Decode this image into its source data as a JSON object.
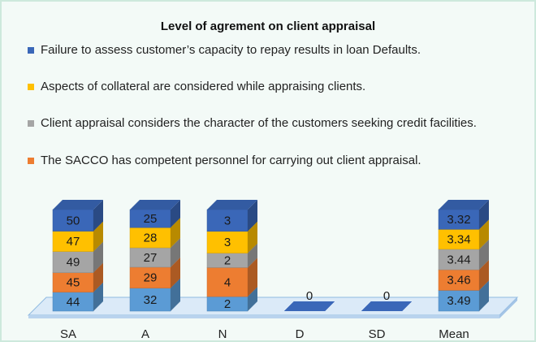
{
  "chart_data": {
    "type": "bar",
    "stacked": "percent",
    "title": "Level of agrement on client appraisal",
    "categories": [
      "SA",
      "A",
      "N",
      "D",
      "SD",
      "Mean"
    ],
    "series": [
      {
        "name": "Failure to assess customer’s capacity to repay results in loan Defaults.",
        "color": "#3a67b8",
        "values": [
          50,
          25,
          3,
          0,
          0,
          3.32
        ]
      },
      {
        "name": "Aspects of collateral are considered while appraising clients.",
        "color": "#ffc000",
        "values": [
          47,
          28,
          3,
          0,
          0,
          3.34
        ]
      },
      {
        "name": "Client appraisal considers the character of the customers seeking credit facilities.",
        "color": "#a5a5a5",
        "values": [
          49,
          27,
          2,
          0,
          0,
          3.44
        ]
      },
      {
        "name": "The SACCO has competent personnel for carrying out client appraisal.",
        "color": "#ed7d31",
        "values": [
          45,
          29,
          4,
          0,
          0,
          3.46
        ]
      },
      {
        "color": "#5b9bd5",
        "values": [
          44,
          32,
          2,
          0,
          0,
          3.49
        ]
      }
    ]
  }
}
